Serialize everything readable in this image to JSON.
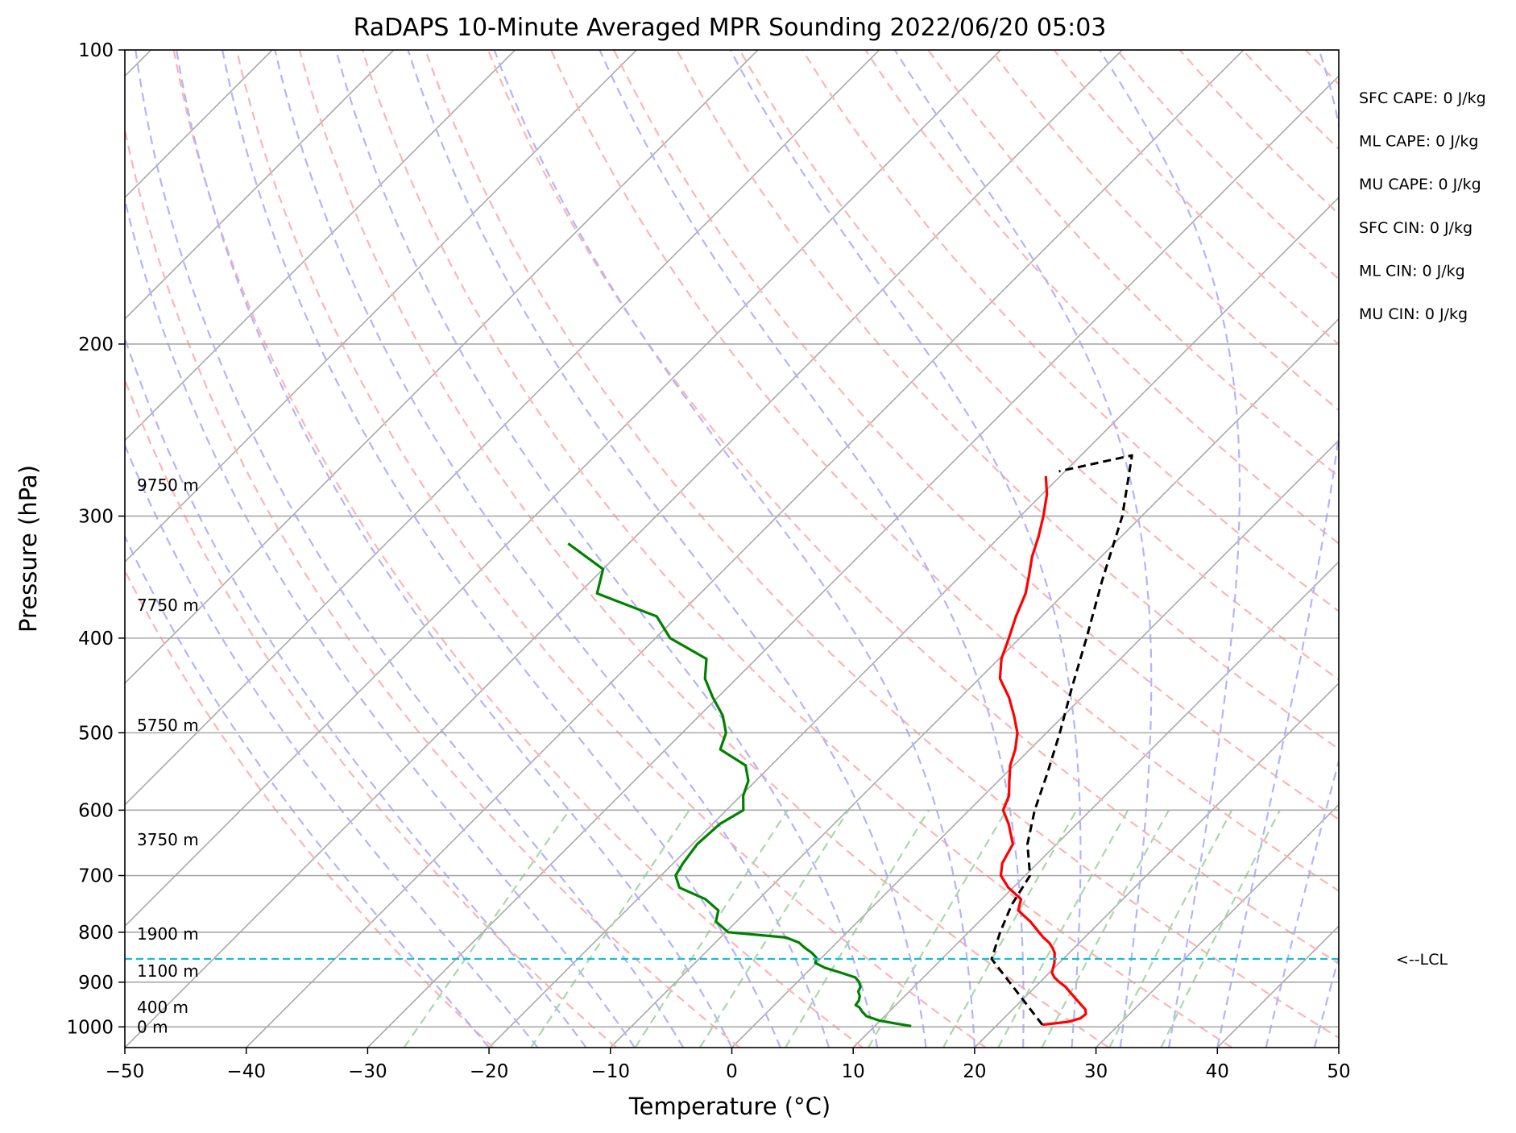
{
  "chart_data": {
    "type": "line",
    "title": "RaDAPS 10-Minute Averaged MPR Sounding 2022/06/20 05:03",
    "xlabel": "Temperature (°C)",
    "ylabel": "Pressure (hPa)",
    "xlim": [
      -50,
      50
    ],
    "ylim": [
      1050,
      100
    ],
    "y_scale": "log",
    "x_ticks": [
      -50,
      -40,
      -30,
      -20,
      -10,
      0,
      10,
      20,
      30,
      40,
      50
    ],
    "x_tick_labels": [
      "−50",
      "−40",
      "−30",
      "−20",
      "−10",
      "0",
      "10",
      "20",
      "30",
      "40",
      "50"
    ],
    "y_ticks": [
      100,
      200,
      300,
      400,
      500,
      600,
      700,
      800,
      900,
      1000
    ],
    "y_tick_labels": [
      "100",
      "200",
      "300",
      "400",
      "500",
      "600",
      "700",
      "800",
      "900",
      "1000"
    ],
    "grid": true,
    "skew_degrees": 45,
    "background_lines": {
      "isotherms_color": "#a9a9a9",
      "dry_adiabats_color": "#ffb3b3",
      "moist_adiabats_color": "#b3b3ff",
      "mixing_ratio_color": "#a8d8a8",
      "mixing_ratio_top_hpa": 600
    },
    "series": [
      {
        "color": "#ff0000",
        "x": [
          23.7,
          24.5,
          25.6,
          26.3,
          26.4,
          26.0,
          25.3,
          24.6,
          23.9,
          23.2,
          22.5,
          21.6,
          20.8,
          20.2,
          19.9,
          19.6,
          19.2,
          18.8,
          18.2,
          17.5,
          16.6,
          15.8,
          14.2,
          12.3,
          11.6,
          9.6,
          8.0,
          7.1,
          6.4,
          4.4,
          2.8,
          2.1,
          0.9,
          -0.3,
          -1.2,
          -2.4,
          -4.1,
          -6.0,
          -8.3,
          -9.8,
          -10.9,
          -12.1,
          -13.2,
          -14.4,
          -15.7,
          -16.8,
          -18.1,
          -19.6,
          -21.2
        ],
        "p": [
          995,
          992,
          988,
          980,
          970,
          960,
          950,
          940,
          930,
          920,
          910,
          900,
          890,
          880,
          870,
          860,
          850,
          840,
          830,
          820,
          810,
          800,
          780,
          760,
          740,
          720,
          700,
          680,
          650,
          620,
          600,
          580,
          560,
          540,
          520,
          500,
          480,
          460,
          440,
          420,
          400,
          380,
          360,
          345,
          330,
          315,
          300,
          285,
          273
        ]
      },
      {
        "color": "#008000",
        "x": [
          13.0,
          11.5,
          9.9,
          8.5,
          7.8,
          7.2,
          6.7,
          6.6,
          6.3,
          5.8,
          5.6,
          5.1,
          4.4,
          2.8,
          1.1,
          -0.1,
          -0.4,
          -1.2,
          -2.2,
          -3.1,
          -4.6,
          -9.8,
          -11.7,
          -12.4,
          -14.4,
          -17.5,
          -18.8,
          -19.2,
          -19.6,
          -19.4,
          -18.6,
          -19.8,
          -20.6,
          -22.1,
          -25.5,
          -26.4,
          -28.1,
          -30.4,
          -32.6,
          -34.1,
          -38.8,
          -41.7,
          -48.5,
          -50.0,
          -55.0
        ],
        "p": [
          998,
          992,
          985,
          975,
          965,
          955,
          950,
          940,
          930,
          920,
          910,
          900,
          890,
          880,
          870,
          860,
          850,
          840,
          830,
          820,
          810,
          800,
          780,
          760,
          740,
          720,
          700,
          680,
          650,
          620,
          600,
          580,
          560,
          540,
          520,
          500,
          480,
          460,
          440,
          420,
          400,
          380,
          360,
          340,
          320
        ]
      },
      {
        "color": "#000000",
        "dashed": true,
        "x": [
          23.7,
          14.1,
          12.6,
          11.3,
          10.4,
          7.6,
          5.4,
          3.4,
          1.1,
          -1.6,
          -4.5,
          -7.9,
          -11.6,
          -15.8,
          -20.5
        ],
        "p": [
          995,
          852,
          800,
          750,
          700,
          650,
          600,
          550,
          500,
          450,
          400,
          350,
          300,
          260,
          270
        ]
      }
    ],
    "lcl_pressure": 852,
    "lcl_label": "<--LCL",
    "height_labels": [
      {
        "text": "0 m",
        "p": 1000
      },
      {
        "text": "400 m",
        "p": 955
      },
      {
        "text": "1100 m",
        "p": 877
      },
      {
        "text": "1900 m",
        "p": 803
      },
      {
        "text": "3750 m",
        "p": 643
      },
      {
        "text": "5750 m",
        "p": 491
      },
      {
        "text": "7750 m",
        "p": 370
      },
      {
        "text": "9750 m",
        "p": 279
      }
    ],
    "annotations": [
      "SFC CAPE: 0 J/kg",
      "ML CAPE: 0 J/kg",
      "MU CAPE: 0 J/kg",
      "SFC CIN: 0 J/kg",
      "ML CIN: 0 J/kg",
      "MU CIN: 0 J/kg"
    ]
  }
}
